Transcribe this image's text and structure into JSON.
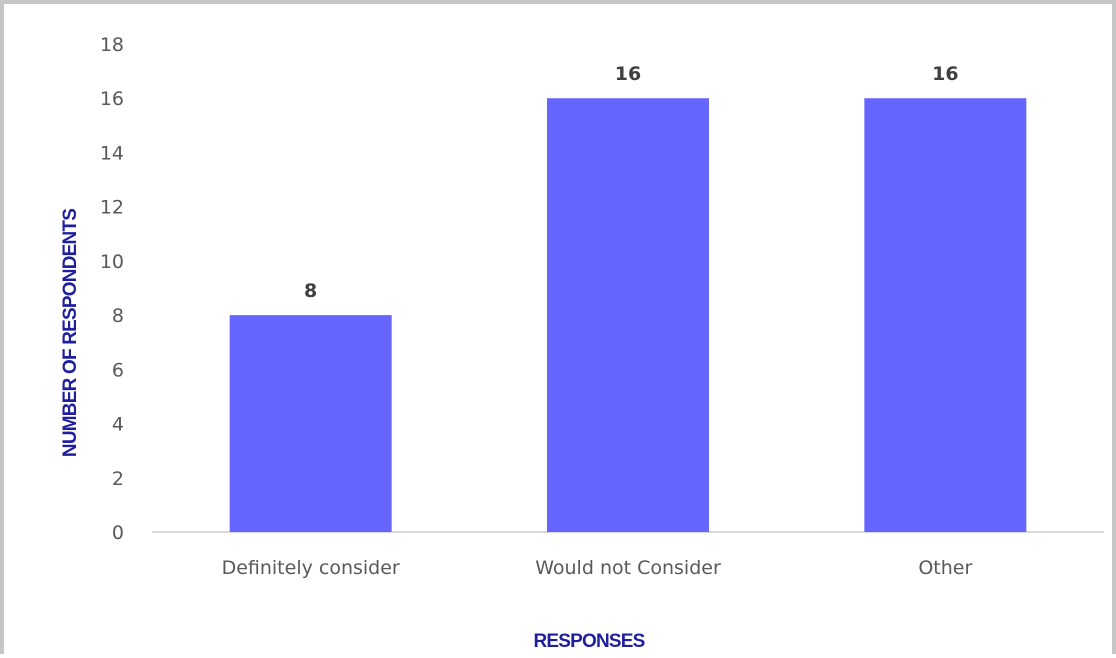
{
  "chart_data": {
    "type": "bar",
    "title": "",
    "xlabel": "RESPONSES",
    "ylabel": "NUMBER OF RESPONDENTS",
    "categories": [
      "Definitely consider",
      "Would not Consider",
      "Other"
    ],
    "values": [
      8,
      16,
      16
    ],
    "data_labels": [
      "8",
      "16",
      "16"
    ],
    "ylim": [
      0,
      18
    ],
    "yticks": [
      0,
      2,
      4,
      6,
      8,
      10,
      12,
      14,
      16,
      18
    ],
    "grid": false,
    "legend": "none",
    "colors": {
      "bar": "#6666ff",
      "axis_title": "#1f1f9e",
      "tick_text": "#595959",
      "data_label": "#404040",
      "axis_line": "#d9d9d9"
    }
  }
}
